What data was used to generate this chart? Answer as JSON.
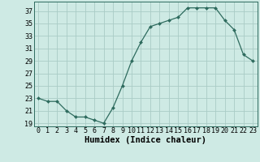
{
  "x": [
    0,
    1,
    2,
    3,
    4,
    5,
    6,
    7,
    8,
    9,
    10,
    11,
    12,
    13,
    14,
    15,
    16,
    17,
    18,
    19,
    20,
    21,
    22,
    23
  ],
  "y": [
    23,
    22.5,
    22.5,
    21,
    20,
    20,
    19.5,
    19,
    21.5,
    25,
    29,
    32,
    34.5,
    35,
    35.5,
    36,
    37.5,
    37.5,
    37.5,
    37.5,
    35.5,
    34,
    30,
    29
  ],
  "line_color": "#2e6b5e",
  "marker": "D",
  "marker_size": 2.0,
  "bg_color": "#ceeae4",
  "grid_major_color": "#aaccc6",
  "grid_minor_color": "#ceeae4",
  "xlabel": "Humidex (Indice chaleur)",
  "xlabel_fontsize": 7.5,
  "ytick_labels": [
    "19",
    "21",
    "23",
    "25",
    "27",
    "29",
    "31",
    "33",
    "35",
    "37"
  ],
  "ytick_values": [
    19,
    21,
    23,
    25,
    27,
    29,
    31,
    33,
    35,
    37
  ],
  "xtick_values": [
    0,
    1,
    2,
    3,
    4,
    5,
    6,
    7,
    8,
    9,
    10,
    11,
    12,
    13,
    14,
    15,
    16,
    17,
    18,
    19,
    20,
    21,
    22,
    23
  ],
  "ylim": [
    18.5,
    38.5
  ],
  "xlim": [
    -0.5,
    23.5
  ],
  "tick_fontsize": 6.0
}
